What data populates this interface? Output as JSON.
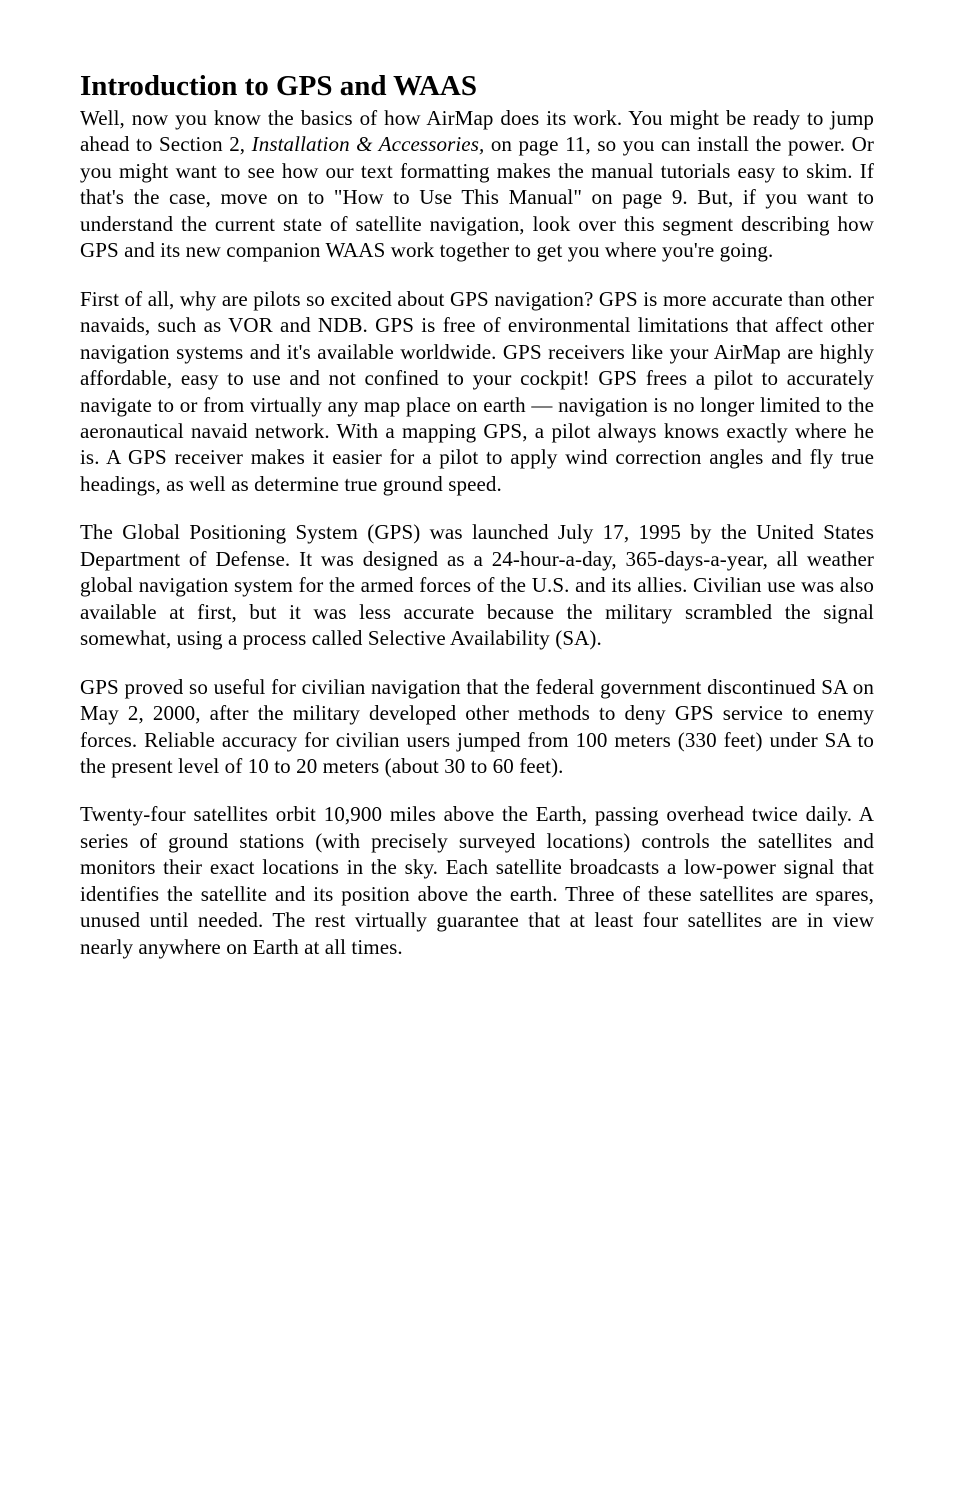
{
  "heading": {
    "text": "Introduction to GPS and WAAS"
  },
  "paragraphs": {
    "p1a": "Well, now you know the basics of how AirMap does its work. You might be ready to jump ahead to Section 2, ",
    "p1_italic": "Installation & Accessories,",
    "p1b": " on page 11, so you can install the power. Or you might want to see how our text formatting makes the manual tutorials easy to skim. If that's the case, move on to \"How to Use This Manual\" on page 9. But, if you want to understand the current state of satellite navigation, look over this segment describing how GPS and its new companion WAAS work together to get you where you're going.",
    "p2": "First of all, why are pilots so excited about GPS navigation? GPS is more accurate than other navaids, such as VOR and NDB. GPS is free of environmental limitations that affect other navigation systems and it's available worldwide. GPS receivers like your AirMap are highly affordable, easy to use and not confined to your cockpit! GPS frees a pilot to accurately navigate to or from virtually any map place on earth — navigation is no longer limited to the aeronautical navaid network. With a mapping GPS, a pilot always knows exactly where he is. A GPS receiver makes it easier for a pilot to apply wind correction angles and fly true headings, as well as determine true ground speed.",
    "p3": "The Global Positioning System (GPS) was launched July 17, 1995 by the United States Department of Defense. It was designed as a 24-hour-a-day, 365-days-a-year, all weather global navigation system for the armed forces of the U.S. and its allies. Civilian use was also available at first, but it was less accurate because the military scrambled the signal somewhat, using a process called Selective Availability (SA).",
    "p4": "GPS proved so useful for civilian navigation that the federal government discontinued SA on May 2, 2000, after the military developed other methods to deny GPS service to enemy forces. Reliable accuracy for civilian users jumped from 100 meters (330 feet) under SA to the present level of 10 to 20 meters (about 30 to 60 feet).",
    "p5": "Twenty-four satellites orbit 10,900 miles above the Earth, passing overhead twice daily. A series of ground stations (with precisely surveyed locations) controls the satellites and monitors their exact locations in the sky. Each satellite broadcasts a low-power signal that identifies the satellite and its position above the earth. Three of these satellites are spares, unused until needed. The rest virtually guarantee that at least four satellites are in view nearly anywhere on Earth at all times."
  }
}
